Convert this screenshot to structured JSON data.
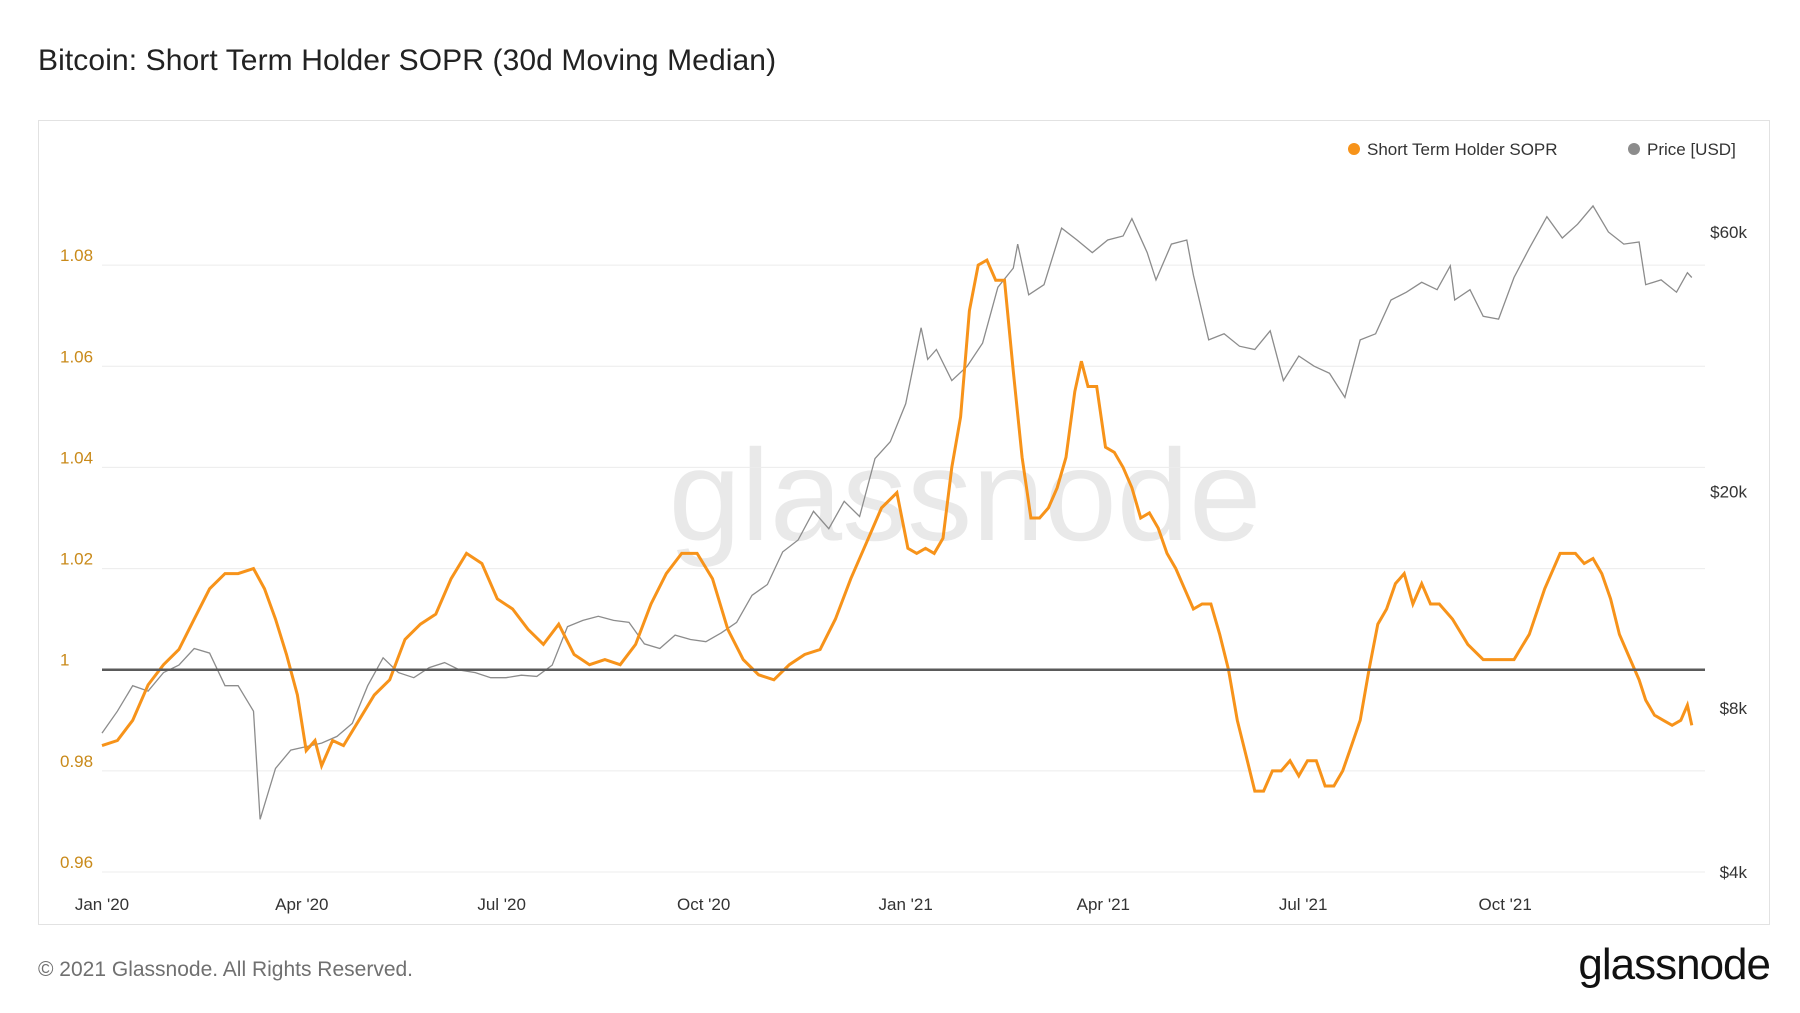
{
  "title": "Bitcoin: Short Term Holder SOPR (30d Moving Median)",
  "footer": {
    "copyright": "© 2021 Glassnode. All Rights Reserved.",
    "logo": "glassnode"
  },
  "watermark": "glassnode",
  "colors": {
    "sopr": "#f7931a",
    "sopr_tick": "#c98a1a",
    "price": "#8c8c8c",
    "baseline": "#5a5a5a",
    "grid": "#ececec",
    "text": "#333333",
    "watermark": "#e9e9e9"
  },
  "chart_data": {
    "type": "line",
    "title": "Bitcoin: Short Term Holder SOPR (30d Moving Median)",
    "legend": {
      "position": "top-right",
      "items": [
        {
          "label": "Short Term Holder SOPR",
          "color": "#f7931a"
        },
        {
          "label": "Price [USD]",
          "color": "#8c8c8c"
        }
      ]
    },
    "x_range": [
      "2020-01-01",
      "2021-12-31"
    ],
    "x_ticks": [
      {
        "label": "Jan '20",
        "date": "2020-01-01"
      },
      {
        "label": "Apr '20",
        "date": "2020-04-01"
      },
      {
        "label": "Jul '20",
        "date": "2020-07-01"
      },
      {
        "label": "Oct '20",
        "date": "2020-10-01"
      },
      {
        "label": "Jan '21",
        "date": "2021-01-01"
      },
      {
        "label": "Apr '21",
        "date": "2021-04-01"
      },
      {
        "label": "Jul '21",
        "date": "2021-07-01"
      },
      {
        "label": "Oct '21",
        "date": "2021-10-01"
      }
    ],
    "y_left": {
      "min": 0.96,
      "max": 1.1,
      "ticks": [
        0.96,
        0.98,
        1,
        1.02,
        1.04,
        1.06,
        1.08
      ],
      "tick_labels": [
        "0.96",
        "0.98",
        "1",
        "1.02",
        "1.04",
        "1.06",
        "1.08"
      ],
      "baseline": 1
    },
    "y_right": {
      "scale": "log",
      "min": 4000,
      "max": 80000,
      "ticks": [
        4000,
        8000,
        20000,
        60000
      ],
      "tick_labels": [
        "$4k",
        "$8k",
        "$20k",
        "$60k"
      ]
    },
    "series": [
      {
        "name": "Short Term Holder SOPR",
        "axis": "left",
        "points": [
          [
            "2020-01-01",
            0.985
          ],
          [
            "2020-01-08",
            0.986
          ],
          [
            "2020-01-15",
            0.99
          ],
          [
            "2020-01-22",
            0.997
          ],
          [
            "2020-01-29",
            1.001
          ],
          [
            "2020-02-05",
            1.004
          ],
          [
            "2020-02-12",
            1.01
          ],
          [
            "2020-02-19",
            1.016
          ],
          [
            "2020-02-26",
            1.019
          ],
          [
            "2020-03-03",
            1.019
          ],
          [
            "2020-03-10",
            1.02
          ],
          [
            "2020-03-15",
            1.016
          ],
          [
            "2020-03-20",
            1.01
          ],
          [
            "2020-03-25",
            1.003
          ],
          [
            "2020-03-30",
            0.995
          ],
          [
            "2020-04-03",
            0.984
          ],
          [
            "2020-04-07",
            0.986
          ],
          [
            "2020-04-10",
            0.981
          ],
          [
            "2020-04-15",
            0.986
          ],
          [
            "2020-04-20",
            0.985
          ],
          [
            "2020-04-27",
            0.99
          ],
          [
            "2020-05-04",
            0.995
          ],
          [
            "2020-05-11",
            0.998
          ],
          [
            "2020-05-18",
            1.006
          ],
          [
            "2020-05-25",
            1.009
          ],
          [
            "2020-06-01",
            1.011
          ],
          [
            "2020-06-08",
            1.018
          ],
          [
            "2020-06-15",
            1.023
          ],
          [
            "2020-06-22",
            1.021
          ],
          [
            "2020-06-29",
            1.014
          ],
          [
            "2020-07-06",
            1.012
          ],
          [
            "2020-07-13",
            1.008
          ],
          [
            "2020-07-20",
            1.005
          ],
          [
            "2020-07-27",
            1.009
          ],
          [
            "2020-08-03",
            1.003
          ],
          [
            "2020-08-10",
            1.001
          ],
          [
            "2020-08-17",
            1.002
          ],
          [
            "2020-08-24",
            1.001
          ],
          [
            "2020-08-31",
            1.005
          ],
          [
            "2020-09-07",
            1.013
          ],
          [
            "2020-09-14",
            1.019
          ],
          [
            "2020-09-21",
            1.023
          ],
          [
            "2020-09-28",
            1.023
          ],
          [
            "2020-10-05",
            1.018
          ],
          [
            "2020-10-12",
            1.008
          ],
          [
            "2020-10-19",
            1.002
          ],
          [
            "2020-10-26",
            0.999
          ],
          [
            "2020-11-02",
            0.998
          ],
          [
            "2020-11-09",
            1.001
          ],
          [
            "2020-11-16",
            1.003
          ],
          [
            "2020-11-23",
            1.004
          ],
          [
            "2020-11-30",
            1.01
          ],
          [
            "2020-12-07",
            1.018
          ],
          [
            "2020-12-14",
            1.025
          ],
          [
            "2020-12-21",
            1.032
          ],
          [
            "2020-12-28",
            1.035
          ],
          [
            "2021-01-02",
            1.024
          ],
          [
            "2021-01-06",
            1.023
          ],
          [
            "2021-01-10",
            1.024
          ],
          [
            "2021-01-14",
            1.023
          ],
          [
            "2021-01-18",
            1.026
          ],
          [
            "2021-01-22",
            1.04
          ],
          [
            "2021-01-26",
            1.05
          ],
          [
            "2021-01-30",
            1.071
          ],
          [
            "2021-02-03",
            1.08
          ],
          [
            "2021-02-07",
            1.081
          ],
          [
            "2021-02-11",
            1.077
          ],
          [
            "2021-02-15",
            1.077
          ],
          [
            "2021-02-19",
            1.059
          ],
          [
            "2021-02-23",
            1.042
          ],
          [
            "2021-02-27",
            1.03
          ],
          [
            "2021-03-03",
            1.03
          ],
          [
            "2021-03-07",
            1.032
          ],
          [
            "2021-03-11",
            1.036
          ],
          [
            "2021-03-15",
            1.042
          ],
          [
            "2021-03-19",
            1.055
          ],
          [
            "2021-03-22",
            1.061
          ],
          [
            "2021-03-25",
            1.056
          ],
          [
            "2021-03-29",
            1.056
          ],
          [
            "2021-04-02",
            1.044
          ],
          [
            "2021-04-06",
            1.043
          ],
          [
            "2021-04-10",
            1.04
          ],
          [
            "2021-04-14",
            1.036
          ],
          [
            "2021-04-18",
            1.03
          ],
          [
            "2021-04-22",
            1.031
          ],
          [
            "2021-04-26",
            1.028
          ],
          [
            "2021-04-30",
            1.023
          ],
          [
            "2021-05-04",
            1.02
          ],
          [
            "2021-05-08",
            1.016
          ],
          [
            "2021-05-12",
            1.012
          ],
          [
            "2021-05-16",
            1.013
          ],
          [
            "2021-05-20",
            1.013
          ],
          [
            "2021-05-24",
            1.007
          ],
          [
            "2021-05-28",
            1.0
          ],
          [
            "2021-06-01",
            0.99
          ],
          [
            "2021-06-05",
            0.983
          ],
          [
            "2021-06-09",
            0.976
          ],
          [
            "2021-06-13",
            0.976
          ],
          [
            "2021-06-17",
            0.98
          ],
          [
            "2021-06-21",
            0.98
          ],
          [
            "2021-06-25",
            0.982
          ],
          [
            "2021-06-29",
            0.979
          ],
          [
            "2021-07-03",
            0.982
          ],
          [
            "2021-07-07",
            0.982
          ],
          [
            "2021-07-11",
            0.977
          ],
          [
            "2021-07-15",
            0.977
          ],
          [
            "2021-07-19",
            0.98
          ],
          [
            "2021-07-23",
            0.985
          ],
          [
            "2021-07-27",
            0.99
          ],
          [
            "2021-07-31",
            1.0
          ],
          [
            "2021-08-04",
            1.009
          ],
          [
            "2021-08-08",
            1.012
          ],
          [
            "2021-08-12",
            1.017
          ],
          [
            "2021-08-16",
            1.019
          ],
          [
            "2021-08-20",
            1.013
          ],
          [
            "2021-08-24",
            1.017
          ],
          [
            "2021-08-28",
            1.013
          ],
          [
            "2021-09-01",
            1.013
          ],
          [
            "2021-09-07",
            1.01
          ],
          [
            "2021-09-14",
            1.005
          ],
          [
            "2021-09-21",
            1.002
          ],
          [
            "2021-09-28",
            1.002
          ],
          [
            "2021-10-05",
            1.002
          ],
          [
            "2021-10-12",
            1.007
          ],
          [
            "2021-10-19",
            1.016
          ],
          [
            "2021-10-26",
            1.023
          ],
          [
            "2021-11-02",
            1.023
          ],
          [
            "2021-11-06",
            1.021
          ],
          [
            "2021-11-10",
            1.022
          ],
          [
            "2021-11-14",
            1.019
          ],
          [
            "2021-11-18",
            1.014
          ],
          [
            "2021-11-22",
            1.007
          ],
          [
            "2021-11-26",
            1.003
          ],
          [
            "2021-12-01",
            0.998
          ],
          [
            "2021-12-04",
            0.994
          ],
          [
            "2021-12-08",
            0.991
          ],
          [
            "2021-12-12",
            0.99
          ],
          [
            "2021-12-16",
            0.989
          ],
          [
            "2021-12-20",
            0.99
          ],
          [
            "2021-12-23",
            0.993
          ],
          [
            "2021-12-25",
            0.989
          ]
        ]
      },
      {
        "name": "Price [USD]",
        "axis": "right",
        "points": [
          [
            "2020-01-01",
            7200
          ],
          [
            "2020-01-08",
            7900
          ],
          [
            "2020-01-15",
            8800
          ],
          [
            "2020-01-22",
            8600
          ],
          [
            "2020-01-29",
            9300
          ],
          [
            "2020-02-05",
            9600
          ],
          [
            "2020-02-12",
            10300
          ],
          [
            "2020-02-19",
            10100
          ],
          [
            "2020-02-26",
            8800
          ],
          [
            "2020-03-03",
            8800
          ],
          [
            "2020-03-10",
            7900
          ],
          [
            "2020-03-13",
            5000
          ],
          [
            "2020-03-20",
            6200
          ],
          [
            "2020-03-27",
            6700
          ],
          [
            "2020-04-03",
            6800
          ],
          [
            "2020-04-10",
            6900
          ],
          [
            "2020-04-17",
            7100
          ],
          [
            "2020-04-24",
            7500
          ],
          [
            "2020-05-01",
            8800
          ],
          [
            "2020-05-08",
            9900
          ],
          [
            "2020-05-15",
            9300
          ],
          [
            "2020-05-22",
            9100
          ],
          [
            "2020-05-29",
            9500
          ],
          [
            "2020-06-05",
            9700
          ],
          [
            "2020-06-12",
            9400
          ],
          [
            "2020-06-19",
            9300
          ],
          [
            "2020-06-26",
            9100
          ],
          [
            "2020-07-03",
            9100
          ],
          [
            "2020-07-10",
            9200
          ],
          [
            "2020-07-17",
            9150
          ],
          [
            "2020-07-24",
            9600
          ],
          [
            "2020-07-31",
            11300
          ],
          [
            "2020-08-07",
            11600
          ],
          [
            "2020-08-14",
            11800
          ],
          [
            "2020-08-21",
            11600
          ],
          [
            "2020-08-28",
            11500
          ],
          [
            "2020-09-04",
            10500
          ],
          [
            "2020-09-11",
            10300
          ],
          [
            "2020-09-18",
            10900
          ],
          [
            "2020-09-25",
            10700
          ],
          [
            "2020-10-02",
            10600
          ],
          [
            "2020-10-09",
            11000
          ],
          [
            "2020-10-16",
            11500
          ],
          [
            "2020-10-23",
            12900
          ],
          [
            "2020-10-30",
            13500
          ],
          [
            "2020-11-06",
            15500
          ],
          [
            "2020-11-13",
            16300
          ],
          [
            "2020-11-20",
            18400
          ],
          [
            "2020-11-27",
            17100
          ],
          [
            "2020-12-04",
            19200
          ],
          [
            "2020-12-11",
            18000
          ],
          [
            "2020-12-18",
            23000
          ],
          [
            "2020-12-25",
            24700
          ],
          [
            "2021-01-01",
            29000
          ],
          [
            "2021-01-08",
            40000
          ],
          [
            "2021-01-11",
            35000
          ],
          [
            "2021-01-15",
            36500
          ],
          [
            "2021-01-22",
            32000
          ],
          [
            "2021-01-29",
            34000
          ],
          [
            "2021-02-05",
            37500
          ],
          [
            "2021-02-12",
            47500
          ],
          [
            "2021-02-19",
            51500
          ],
          [
            "2021-02-21",
            57000
          ],
          [
            "2021-02-26",
            46000
          ],
          [
            "2021-03-05",
            48000
          ],
          [
            "2021-03-13",
            61000
          ],
          [
            "2021-03-20",
            58000
          ],
          [
            "2021-03-27",
            55000
          ],
          [
            "2021-04-03",
            58000
          ],
          [
            "2021-04-10",
            59000
          ],
          [
            "2021-04-14",
            63500
          ],
          [
            "2021-04-21",
            55000
          ],
          [
            "2021-04-25",
            49000
          ],
          [
            "2021-05-02",
            57000
          ],
          [
            "2021-05-09",
            58000
          ],
          [
            "2021-05-12",
            50000
          ],
          [
            "2021-05-19",
            38000
          ],
          [
            "2021-05-26",
            39000
          ],
          [
            "2021-06-02",
            37000
          ],
          [
            "2021-06-09",
            36500
          ],
          [
            "2021-06-16",
            39500
          ],
          [
            "2021-06-22",
            32000
          ],
          [
            "2021-06-29",
            35500
          ],
          [
            "2021-07-06",
            34000
          ],
          [
            "2021-07-13",
            33000
          ],
          [
            "2021-07-20",
            29800
          ],
          [
            "2021-07-27",
            38000
          ],
          [
            "2021-08-03",
            39000
          ],
          [
            "2021-08-10",
            45000
          ],
          [
            "2021-08-17",
            46500
          ],
          [
            "2021-08-24",
            48500
          ],
          [
            "2021-08-31",
            47000
          ],
          [
            "2021-09-06",
            52000
          ],
          [
            "2021-09-08",
            45000
          ],
          [
            "2021-09-15",
            47000
          ],
          [
            "2021-09-21",
            42000
          ],
          [
            "2021-09-28",
            41500
          ],
          [
            "2021-10-05",
            49500
          ],
          [
            "2021-10-12",
            56000
          ],
          [
            "2021-10-20",
            64000
          ],
          [
            "2021-10-27",
            58500
          ],
          [
            "2021-11-03",
            62000
          ],
          [
            "2021-11-10",
            67000
          ],
          [
            "2021-11-17",
            60000
          ],
          [
            "2021-11-24",
            57000
          ],
          [
            "2021-12-01",
            57500
          ],
          [
            "2021-12-04",
            48000
          ],
          [
            "2021-12-11",
            49000
          ],
          [
            "2021-12-18",
            46500
          ],
          [
            "2021-12-23",
            50500
          ],
          [
            "2021-12-25",
            49500
          ]
        ]
      }
    ]
  }
}
